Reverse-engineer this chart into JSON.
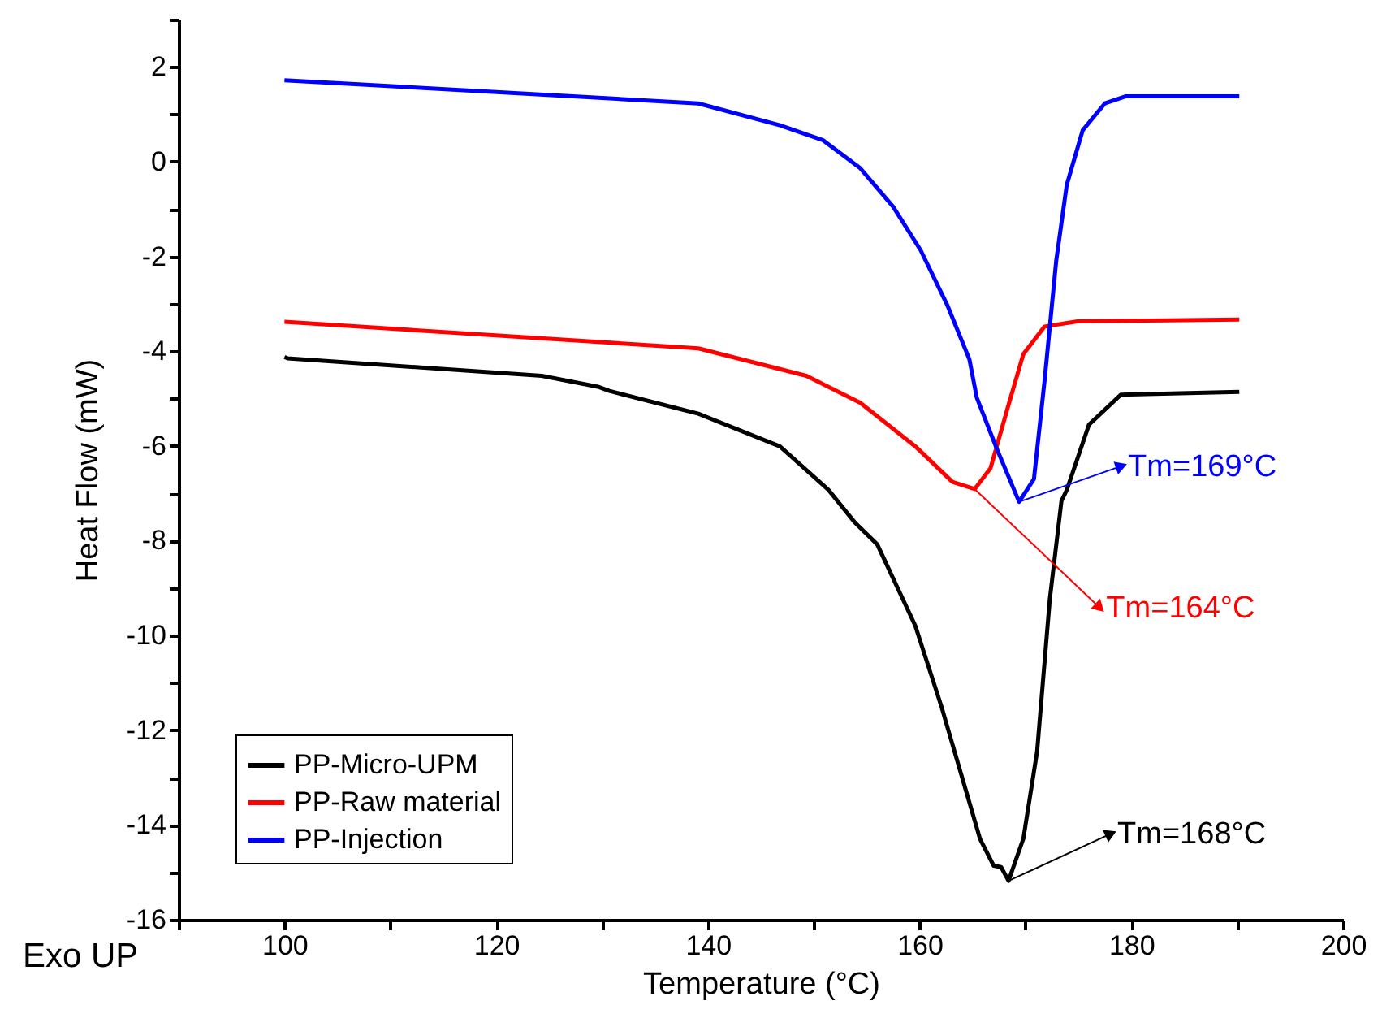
{
  "chart_data": {
    "type": "line",
    "xlabel": "Temperature (°C)",
    "ylabel": "Heat Flow (mW)",
    "xlim": [
      90,
      200
    ],
    "ylim": [
      -16,
      3
    ],
    "xticks": [
      {
        "value": 90,
        "label": null
      },
      100,
      {
        "value": 110,
        "label": null
      },
      120,
      {
        "value": 130,
        "label": null
      },
      140,
      {
        "value": 150,
        "label": null
      },
      160,
      {
        "value": 170,
        "label": null
      },
      180,
      {
        "value": 190,
        "label": null
      },
      200
    ],
    "yticks": [
      -16,
      {
        "value": -15,
        "label": null
      },
      -14,
      {
        "value": -13,
        "label": null
      },
      -12,
      {
        "value": -11,
        "label": null
      },
      -10,
      {
        "value": -9,
        "label": null
      },
      -8,
      {
        "value": -7,
        "label": null
      },
      -6,
      {
        "value": -5,
        "label": null
      },
      -4,
      {
        "value": -3,
        "label": null
      },
      -2,
      {
        "value": -1,
        "label": null
      },
      0,
      {
        "value": 1,
        "label": null
      },
      2,
      {
        "value": 3,
        "label": null
      }
    ],
    "grid": false,
    "legend": "bottom left",
    "marker": "none",
    "line_style": "solid",
    "series": [
      {
        "name": "PP-Micro-UPM",
        "color": "#000000",
        "x": [
          100,
          100.3,
          124.3,
          129.6,
          130.7,
          139.1,
          146.8,
          151.4,
          153.9,
          156.0,
          159.6,
          162.1,
          164.2,
          165.7,
          167.0,
          167.7,
          168.4,
          169.8,
          171.1,
          172.3,
          173.4,
          173.9,
          176.0,
          179.0,
          190.2
        ],
        "values": [
          -4.12,
          -4.15,
          -4.52,
          -4.75,
          -4.84,
          -5.32,
          -6.01,
          -6.93,
          -7.62,
          -8.08,
          -9.8,
          -11.53,
          -13.14,
          -14.29,
          -14.86,
          -14.89,
          -15.18,
          -14.29,
          -12.45,
          -9.23,
          -7.16,
          -6.93,
          -5.55,
          -4.92,
          -4.86
        ]
      },
      {
        "name": "PP-Raw material",
        "color": "#ff0000",
        "x": [
          100,
          139.1,
          149.3,
          154.4,
          159.6,
          163.1,
          165.2,
          166.7,
          168.3,
          169.8,
          171.8,
          174.9,
          190.2
        ],
        "values": [
          -3.38,
          -3.94,
          -4.52,
          -5.09,
          -6.01,
          -6.76,
          -6.91,
          -6.47,
          -5.21,
          -4.06,
          -3.48,
          -3.37,
          -3.33
        ]
      },
      {
        "name": "PP-Injection",
        "color": "#0000ff",
        "x": [
          100,
          139.1,
          146.8,
          150.9,
          154.4,
          157.5,
          160.1,
          162.6,
          164.7,
          165.4,
          167.2,
          169.4,
          170.8,
          171.8,
          172.9,
          173.9,
          175.4,
          177.5,
          179.5,
          190.2
        ],
        "values": [
          1.72,
          1.23,
          0.77,
          0.45,
          -0.14,
          -0.95,
          -1.87,
          -3.02,
          -4.17,
          -4.98,
          -6.01,
          -7.18,
          -6.7,
          -4.63,
          -2.1,
          -0.49,
          0.66,
          1.23,
          1.38,
          1.38
        ]
      }
    ],
    "annotations": [
      {
        "text": "Tm=168°C",
        "x": 168.4,
        "y": -15.18
      },
      {
        "text": "Tm=164°C",
        "x": 165.2,
        "y": -6.91
      },
      {
        "text": "Tm=169°C",
        "x": 169.4,
        "y": -7.18
      },
      "Exo UP"
    ]
  }
}
